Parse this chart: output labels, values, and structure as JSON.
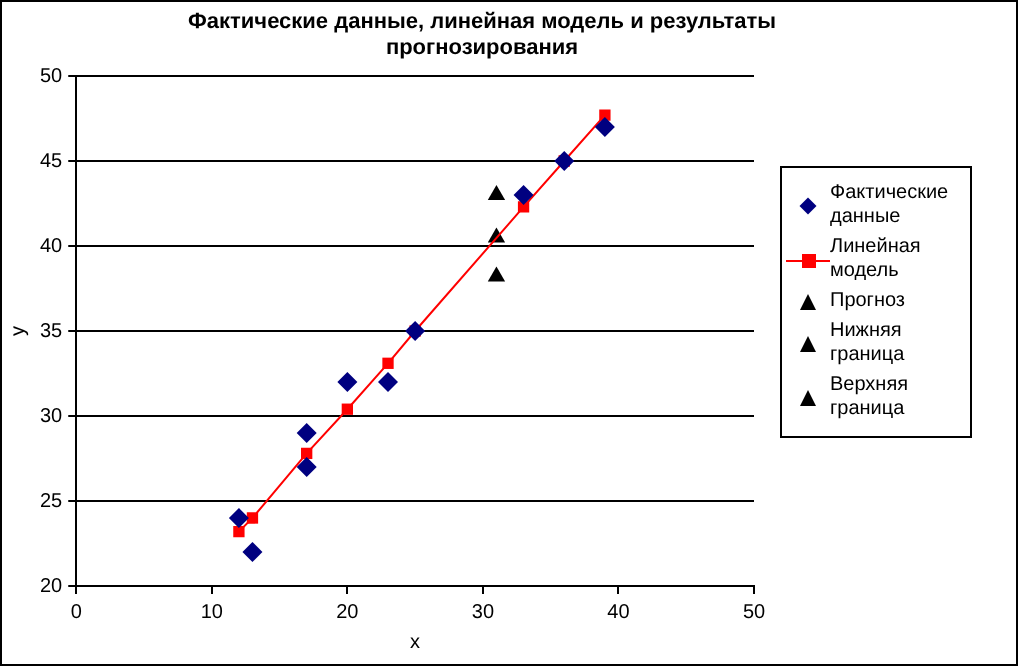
{
  "chart_data": {
    "type": "scatter",
    "title": "Фактические данные, линейная модель и результаты прогнозирования",
    "xlabel": "x",
    "ylabel": "y",
    "xlim": [
      0,
      50
    ],
    "xticks": [
      0,
      10,
      20,
      30,
      40,
      50
    ],
    "ylim": [
      20,
      50
    ],
    "yticks": [
      20,
      25,
      30,
      35,
      40,
      45,
      50
    ],
    "grid": "y",
    "legend": "right",
    "series": [
      {
        "name": "Фактические данные",
        "marker": "diamond",
        "color": "#000080",
        "x": [
          12,
          13,
          17,
          17,
          20,
          23,
          25,
          33,
          36,
          39
        ],
        "values": [
          24,
          22,
          29,
          27,
          32,
          32,
          35,
          43,
          45,
          47
        ]
      },
      {
        "name": "Линейная модель",
        "type": "line",
        "marker": "square",
        "color": "#ff0000",
        "x": [
          12,
          13,
          17,
          20,
          23,
          25,
          33,
          36,
          39
        ],
        "values": [
          23.2,
          24,
          27.8,
          30.4,
          33.1,
          35,
          42.3,
          45,
          47.7
        ]
      },
      {
        "name": "Прогноз",
        "marker": "triangle",
        "color": "#000000",
        "x": [
          31
        ],
        "values": [
          40.5
        ]
      },
      {
        "name": "Нижняя граница",
        "marker": "triangle",
        "color": "#000000",
        "x": [
          31
        ],
        "values": [
          38.2
        ]
      },
      {
        "name": "Верхняя граница",
        "marker": "triangle",
        "color": "#000000",
        "x": [
          31
        ],
        "values": [
          43
        ]
      }
    ]
  }
}
